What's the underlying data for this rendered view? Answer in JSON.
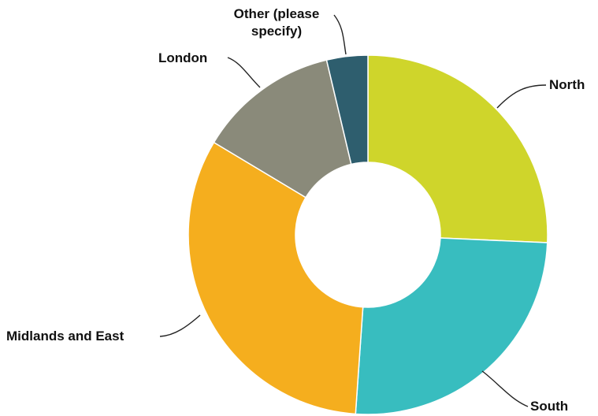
{
  "chart_data": {
    "type": "pie",
    "donut": true,
    "legend": "none",
    "slices": [
      {
        "label": "North",
        "value": 25.7,
        "color": "#cfd52b"
      },
      {
        "label": "South",
        "value": 25.4,
        "color": "#38bdbf"
      },
      {
        "label": "Midlands and East",
        "value": 32.5,
        "color": "#f5ae1e"
      },
      {
        "label": "London",
        "value": 12.7,
        "color": "#8a8a7a"
      },
      {
        "label": "Other (please specify)",
        "value": 3.7,
        "color": "#2e5e6e"
      }
    ]
  }
}
